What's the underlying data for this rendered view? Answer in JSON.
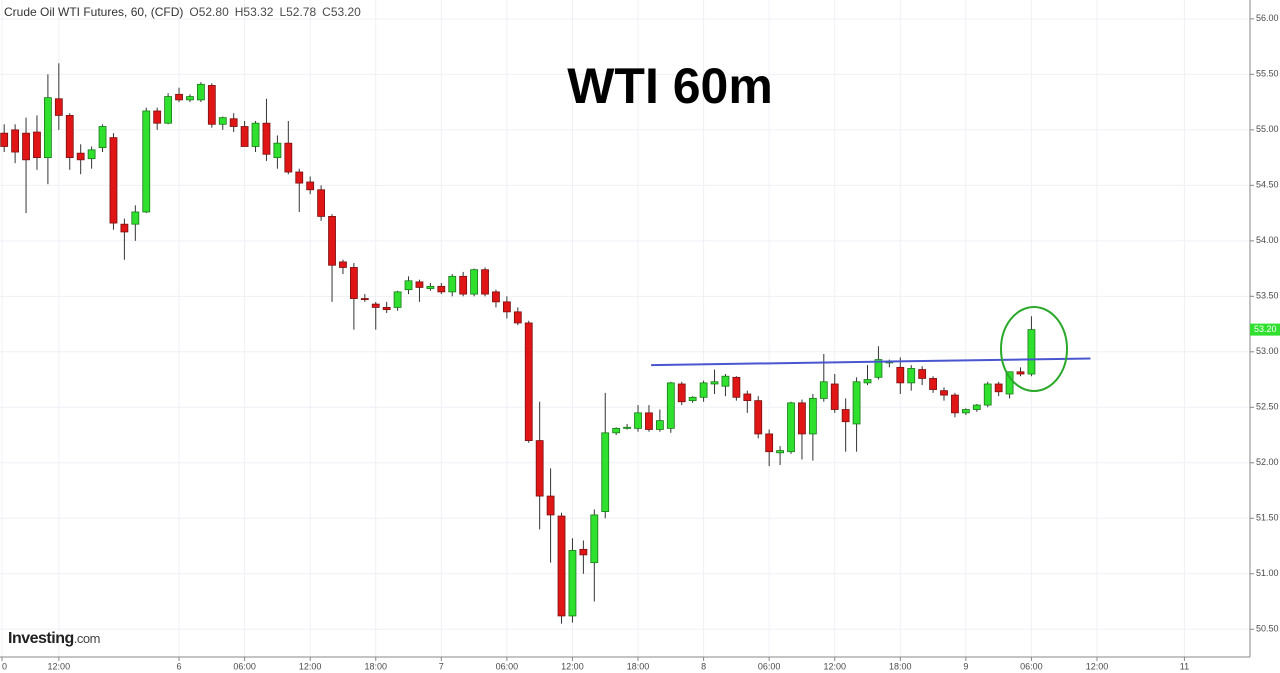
{
  "chart_data": {
    "type": "candlestick",
    "title": "WTI 60m",
    "header": {
      "symbol": "Crude Oil WTI Futures, 60, (CFD)",
      "ohlc": [
        "O52.80",
        "H53.32",
        "L52.78",
        "C53.20"
      ]
    },
    "logo": [
      "Investing",
      "com"
    ],
    "up_color": "#2fe02f",
    "down_color": "#e01515",
    "grid": true,
    "open": [
      54.97,
      55.0,
      54.97,
      54.98,
      54.75,
      55.28,
      55.13,
      54.79,
      54.74,
      54.84,
      54.93,
      54.15,
      54.15,
      54.26,
      55.17,
      55.06,
      55.32,
      55.27,
      55.27,
      55.4,
      55.05,
      55.1,
      55.03,
      54.85,
      55.06,
      54.75,
      54.88,
      54.62,
      54.53,
      54.46,
      54.22,
      53.81,
      53.76,
      53.48,
      53.43,
      53.4,
      53.4,
      53.56,
      53.63,
      53.57,
      53.59,
      53.54,
      53.68,
      53.52,
      53.74,
      53.54,
      53.45,
      53.36,
      53.26,
      52.2,
      51.7,
      51.52,
      50.62,
      51.22,
      51.1,
      51.56,
      52.27,
      52.31,
      52.31,
      52.45,
      52.3,
      52.31,
      52.71,
      52.56,
      52.59,
      52.71,
      52.69,
      52.77,
      52.62,
      52.56,
      52.26,
      52.09,
      52.1,
      52.54,
      52.26,
      52.58,
      52.71,
      52.48,
      52.35,
      52.72,
      52.77,
      52.9,
      52.86,
      52.72,
      52.84,
      52.76,
      52.65,
      52.61,
      52.45,
      52.48,
      52.52,
      52.71,
      52.62,
      52.82,
      52.8
    ],
    "high": [
      55.05,
      55.05,
      55.11,
      55.13,
      55.5,
      55.6,
      55.15,
      54.87,
      54.85,
      55.05,
      54.97,
      54.2,
      54.32,
      55.2,
      55.2,
      55.33,
      55.38,
      55.32,
      55.43,
      55.42,
      55.12,
      55.15,
      55.08,
      55.08,
      55.28,
      54.95,
      55.08,
      54.65,
      54.58,
      54.5,
      54.24,
      53.83,
      53.8,
      53.52,
      53.45,
      53.45,
      53.55,
      53.68,
      53.65,
      53.62,
      53.62,
      53.7,
      53.72,
      53.75,
      53.76,
      53.56,
      53.5,
      53.4,
      53.28,
      52.55,
      51.95,
      51.55,
      51.32,
      51.3,
      51.58,
      52.63,
      52.32,
      52.35,
      52.52,
      52.52,
      52.48,
      52.73,
      52.73,
      52.6,
      52.74,
      52.84,
      52.8,
      52.78,
      52.65,
      52.6,
      52.3,
      52.15,
      52.55,
      52.57,
      52.62,
      52.98,
      52.8,
      52.58,
      52.77,
      52.88,
      53.05,
      52.93,
      52.95,
      52.88,
      52.87,
      52.78,
      52.68,
      52.63,
      52.49,
      52.53,
      52.73,
      52.73,
      52.82,
      52.86,
      53.32
    ],
    "low": [
      54.8,
      54.7,
      54.25,
      54.64,
      54.51,
      55.0,
      54.64,
      54.6,
      54.65,
      54.8,
      54.1,
      53.83,
      54.0,
      54.25,
      55.0,
      55.05,
      55.25,
      55.25,
      55.25,
      55.02,
      55.0,
      54.98,
      54.85,
      54.8,
      54.72,
      54.65,
      54.6,
      54.26,
      54.42,
      54.18,
      53.45,
      53.7,
      53.2,
      53.45,
      53.2,
      53.35,
      53.37,
      53.52,
      53.45,
      53.55,
      53.52,
      53.5,
      53.5,
      53.5,
      53.5,
      53.4,
      53.3,
      53.24,
      52.18,
      51.4,
      51.1,
      50.55,
      50.56,
      51.0,
      50.75,
      51.5,
      52.25,
      52.3,
      52.28,
      52.28,
      52.28,
      52.27,
      52.52,
      52.54,
      52.55,
      52.62,
      52.6,
      52.56,
      52.45,
      52.22,
      51.97,
      51.98,
      52.08,
      52.03,
      52.02,
      52.55,
      52.45,
      52.1,
      52.1,
      52.7,
      52.75,
      52.86,
      52.62,
      52.65,
      52.7,
      52.63,
      52.56,
      52.41,
      52.43,
      52.46,
      52.5,
      52.6,
      52.58,
      52.78,
      52.78
    ],
    "close": [
      54.85,
      54.8,
      54.73,
      54.75,
      55.29,
      55.13,
      54.75,
      54.73,
      54.82,
      55.03,
      54.16,
      54.08,
      54.26,
      55.17,
      55.06,
      55.3,
      55.27,
      55.3,
      55.41,
      55.05,
      55.11,
      55.03,
      54.85,
      55.06,
      54.78,
      54.88,
      54.62,
      54.52,
      54.46,
      54.22,
      53.78,
      53.76,
      53.48,
      53.47,
      53.4,
      53.38,
      53.54,
      53.64,
      53.58,
      53.59,
      53.54,
      53.68,
      53.52,
      53.74,
      53.52,
      53.45,
      53.36,
      53.26,
      52.2,
      51.7,
      51.53,
      50.62,
      51.21,
      51.17,
      51.53,
      52.27,
      52.31,
      52.32,
      52.45,
      52.3,
      52.38,
      52.72,
      52.55,
      52.59,
      52.72,
      52.73,
      52.78,
      52.59,
      52.56,
      52.26,
      52.1,
      52.11,
      52.54,
      52.26,
      52.58,
      52.73,
      52.48,
      52.37,
      52.73,
      52.75,
      52.93,
      52.91,
      52.72,
      52.85,
      52.76,
      52.66,
      52.61,
      52.45,
      52.48,
      52.52,
      52.71,
      52.64,
      52.82,
      52.8,
      53.2
    ],
    "last_label": {
      "value": 53.2,
      "label": "53.20"
    },
    "trendline": {
      "color": "#4a56cf",
      "x": [
        59.2,
        99.4
      ],
      "y": [
        52.88,
        52.94
      ]
    },
    "xlim": [
      -0.2,
      114
    ],
    "ylim": [
      50.25,
      56.17
    ],
    "xticks": [
      {
        "value": -0.2,
        "label": "0"
      },
      {
        "value": 5,
        "label": "12:00"
      },
      {
        "value": 16,
        "label": "6"
      },
      {
        "value": 22,
        "label": "06:00"
      },
      {
        "value": 28,
        "label": "12:00"
      },
      {
        "value": 34,
        "label": "18:00"
      },
      {
        "value": 40,
        "label": "7"
      },
      {
        "value": 46,
        "label": "06:00"
      },
      {
        "value": 52,
        "label": "12:00"
      },
      {
        "value": 58,
        "label": "18:00"
      },
      {
        "value": 64,
        "label": "8"
      },
      {
        "value": 70,
        "label": "06:00"
      },
      {
        "value": 76,
        "label": "12:00"
      },
      {
        "value": 82,
        "label": "18:00"
      },
      {
        "value": 88,
        "label": "9"
      },
      {
        "value": 94,
        "label": "06:00"
      },
      {
        "value": 100,
        "label": "12:00"
      },
      {
        "value": 108,
        "label": "11"
      }
    ],
    "yticks": [
      {
        "value": 50.5,
        "label": "50.50"
      },
      {
        "value": 51,
        "label": "51.00"
      },
      {
        "value": 51.5,
        "label": "51.50"
      },
      {
        "value": 52,
        "label": "52.00"
      },
      {
        "value": 52.5,
        "label": "52.50"
      },
      {
        "value": 53,
        "label": "53.00"
      },
      {
        "value": 53.5,
        "label": "53.50"
      },
      {
        "value": 54,
        "label": "54.00"
      },
      {
        "value": 54.5,
        "label": "54.50"
      },
      {
        "value": 55,
        "label": "55.00"
      },
      {
        "value": 55.5,
        "label": "55.50"
      },
      {
        "value": 56,
        "label": "56.00"
      }
    ]
  }
}
